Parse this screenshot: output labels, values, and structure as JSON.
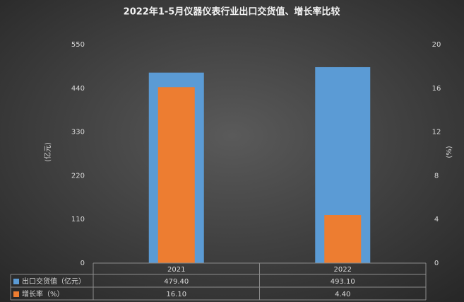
{
  "chart_data": {
    "type": "bar",
    "title": "2022年1-5月仪器仪表行业出口交货值、增长率比较",
    "categories": [
      "2021",
      "2022"
    ],
    "series": [
      {
        "name": "出口交货值（亿元）",
        "color": "#5b9bd5",
        "values": [
          479.4,
          493.1
        ],
        "value_labels": [
          "479.40",
          "493.10"
        ]
      },
      {
        "name": "增长率（%）",
        "color": "#ed7d31",
        "axis": "y2",
        "values": [
          16.1,
          4.4
        ],
        "value_labels": [
          "16.10",
          "4.40"
        ]
      }
    ],
    "ylim": [
      0,
      550
    ],
    "yticks": [
      0,
      110,
      220,
      330,
      440,
      550
    ],
    "y2lim": [
      0,
      20
    ],
    "y2ticks": [
      0,
      4,
      8,
      12,
      16,
      20
    ],
    "ylabel": "(亿元)",
    "y2label": "(%)"
  }
}
